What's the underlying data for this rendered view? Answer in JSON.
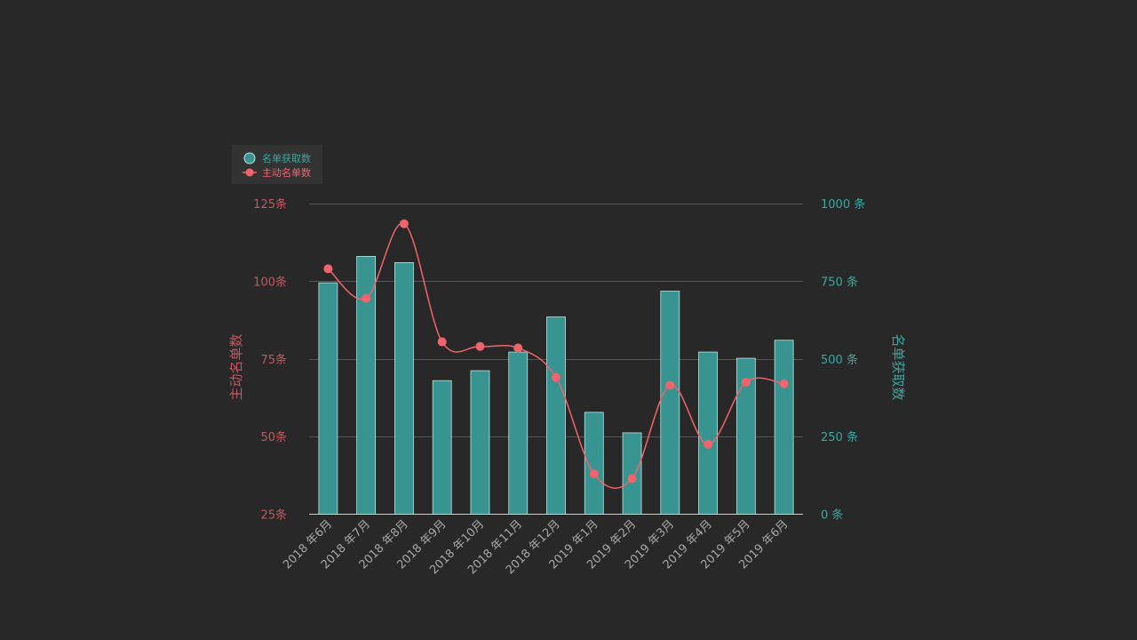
{
  "chart_data": {
    "type": "bar",
    "categories": [
      "2018 年6月",
      "2018 年7月",
      "2018 年8月",
      "2018 年9月",
      "2018 年10月",
      "2018 年11月",
      "2018 年12月",
      "2019 年1月",
      "2019 年2月",
      "2019 年3月",
      "2019 年4月",
      "2019 年5月",
      "2019 年6月"
    ],
    "series": [
      {
        "name": "名单获取数",
        "type": "bar",
        "axis": "right",
        "color": "#379490",
        "values": [
          745,
          830,
          810,
          430,
          462,
          522,
          635,
          328,
          262,
          718,
          522,
          502,
          560
        ]
      },
      {
        "name": "主动名单数",
        "type": "line",
        "axis": "left",
        "color": "#f2636c",
        "values": [
          104,
          94.5,
          118.5,
          80.5,
          79,
          78.5,
          69,
          38,
          36.5,
          66.5,
          47.5,
          67.5,
          67
        ]
      }
    ],
    "left_axis": {
      "label": "主动名单数",
      "range": [
        25,
        125
      ],
      "ticks": [
        25,
        50,
        75,
        100,
        125
      ],
      "tick_labels": [
        "25条",
        "50条",
        "75条",
        "100条",
        "125条"
      ],
      "color": "#c05a62"
    },
    "right_axis": {
      "label": "名单获取数",
      "range": [
        0,
        1000
      ],
      "ticks": [
        0,
        250,
        500,
        750,
        1000
      ],
      "tick_labels": [
        "0 条",
        "250 条",
        "500 条",
        "750 条",
        "1000 条"
      ],
      "color": "#3fa59f"
    },
    "legend": {
      "position": "top-left"
    },
    "grid": true,
    "x_tick_color": "#a8a8a8"
  }
}
